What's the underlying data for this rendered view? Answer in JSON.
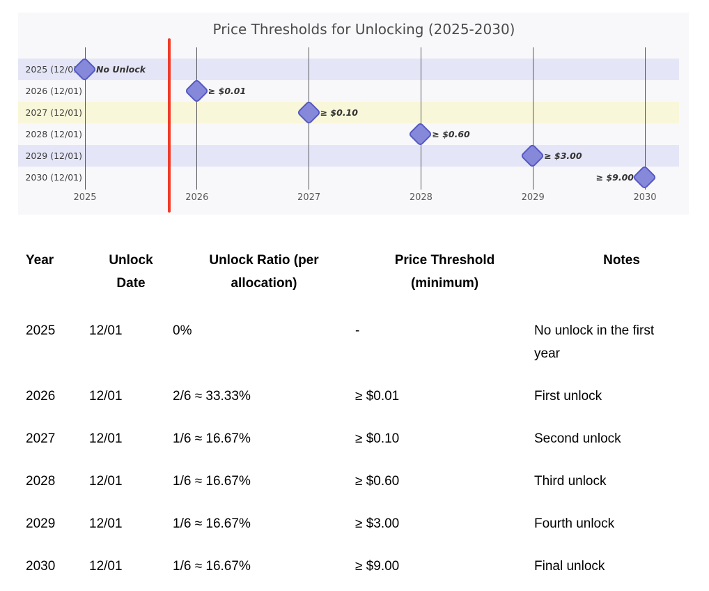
{
  "chart": {
    "colors": {
      "background": "#f8f8fb",
      "band_lavender": "#e4e5f6",
      "band_yellow": "#f9f7d9",
      "marker_fill": "#8689da",
      "marker_border": "#5459c2",
      "divider_red": "#ef3b28",
      "gridline": "#55565c",
      "title_text": "#4a4a4a",
      "axis_text": "#595959",
      "row_label_text": "#3d3d3d",
      "annotation_text": "#333333"
    }
  },
  "chart_data": {
    "type": "scatter",
    "title": "Price Thresholds for Unlocking (2025-2030)",
    "x_ticks": [
      "2025",
      "2026",
      "2027",
      "2028",
      "2029",
      "2030"
    ],
    "y_labels": [
      "2025 (12/01)",
      "2026 (12/01)",
      "2027 (12/01)",
      "2028 (12/01)",
      "2029 (12/01)",
      "2030 (12/01)"
    ],
    "points": [
      {
        "row_label": "2025 (12/01)",
        "x": "2025",
        "annotation": "No Unlock",
        "annotation_side": "right",
        "band": "lavender"
      },
      {
        "row_label": "2026 (12/01)",
        "x": "2026",
        "annotation": "≥ $0.01",
        "annotation_side": "right",
        "band": "none"
      },
      {
        "row_label": "2027 (12/01)",
        "x": "2027",
        "annotation": "≥ $0.10",
        "annotation_side": "right",
        "band": "yellow"
      },
      {
        "row_label": "2028 (12/01)",
        "x": "2028",
        "annotation": "≥ $0.60",
        "annotation_side": "right",
        "band": "none"
      },
      {
        "row_label": "2029 (12/01)",
        "x": "2029",
        "annotation": "≥ $3.00",
        "annotation_side": "right",
        "band": "lavender"
      },
      {
        "row_label": "2030 (12/01)",
        "x": "2030",
        "annotation": "≥ $9.00",
        "annotation_side": "left",
        "band": "none"
      }
    ],
    "divider_line": {
      "present": true,
      "between": [
        "2025",
        "2026"
      ]
    },
    "legend": "none",
    "grid": "vertical-only"
  },
  "table": {
    "headers": [
      "Year",
      "Unlock Date",
      "Unlock Ratio (per allocation)",
      "Price Threshold (minimum)",
      "Notes"
    ],
    "rows": [
      {
        "year": "2025",
        "date": "12/01",
        "ratio": "0%",
        "price": "-",
        "notes": "No unlock in the first year"
      },
      {
        "year": "2026",
        "date": "12/01",
        "ratio": "2/6 ≈ 33.33%",
        "price": "≥ $0.01",
        "notes": "First unlock"
      },
      {
        "year": "2027",
        "date": "12/01",
        "ratio": "1/6 ≈ 16.67%",
        "price": "≥ $0.10",
        "notes": "Second unlock"
      },
      {
        "year": "2028",
        "date": "12/01",
        "ratio": "1/6 ≈ 16.67%",
        "price": "≥ $0.60",
        "notes": "Third unlock"
      },
      {
        "year": "2029",
        "date": "12/01",
        "ratio": "1/6 ≈ 16.67%",
        "price": "≥ $3.00",
        "notes": "Fourth unlock"
      },
      {
        "year": "2030",
        "date": "12/01",
        "ratio": "1/6 ≈ 16.67%",
        "price": "≥ $9.00",
        "notes": "Final unlock"
      }
    ]
  }
}
